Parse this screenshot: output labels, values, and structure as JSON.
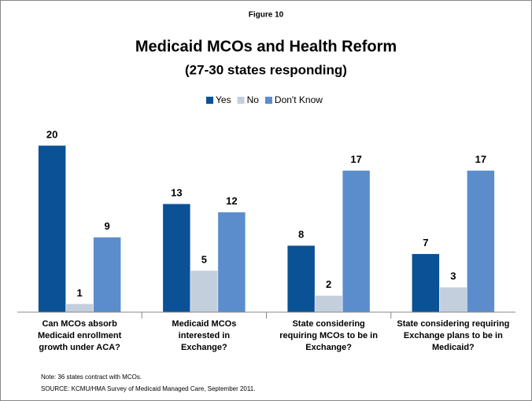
{
  "chart_data": {
    "type": "bar",
    "figure_label": "Figure 10",
    "title": "Medicaid MCOs and Health Reform",
    "subtitle": "(27-30 states responding)",
    "categories": [
      [
        "Can MCOs absorb",
        "Medicaid enrollment",
        "growth under ACA?"
      ],
      [
        "Medicaid MCOs",
        "interested in",
        "Exchange?"
      ],
      [
        "State considering",
        "requiring MCOs to be in",
        "Exchange?"
      ],
      [
        "State considering requiring",
        "Exchange plans to be in",
        "Medicaid?"
      ]
    ],
    "series": [
      {
        "name": "Yes",
        "color": "#0a5196",
        "values": [
          20,
          13,
          8,
          7
        ]
      },
      {
        "name": "No",
        "color": "#c3cfdd",
        "values": [
          1,
          5,
          2,
          3
        ]
      },
      {
        "name": "Don't Know",
        "color": "#5b8dcc",
        "values": [
          9,
          12,
          17,
          17
        ]
      }
    ],
    "ylim": [
      0,
      20
    ],
    "notes": [
      "Note: 36 states contract with MCOs.",
      "SOURCE:  KCMU/HMA Survey of Medicaid Managed Care, September 2011."
    ]
  }
}
